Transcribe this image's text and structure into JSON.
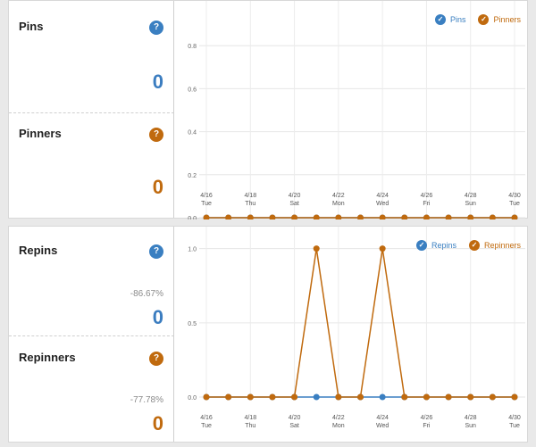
{
  "top_panel": {
    "metrics": [
      {
        "title": "Pins",
        "value": "0",
        "color": "#3b7dc0",
        "help_icon": "question-icon"
      },
      {
        "title": "Pinners",
        "value": "0",
        "color": "#c06a0e",
        "help_icon": "question-icon"
      }
    ],
    "legend": [
      {
        "label": "Pins",
        "color": "#3a7fc1",
        "icon": "check-icon"
      },
      {
        "label": "Pinners",
        "color": "#c06a0e",
        "icon": "check-icon"
      }
    ]
  },
  "bottom_panel": {
    "metrics": [
      {
        "title": "Repins",
        "value": "0",
        "change": "-86.67%",
        "color": "#3b7dc0",
        "help_icon": "question-icon"
      },
      {
        "title": "Repinners",
        "value": "0",
        "change": "-77.78%",
        "color": "#c06a0e",
        "help_icon": "question-icon"
      }
    ],
    "legend": [
      {
        "label": "Repins",
        "color": "#3a7fc1",
        "icon": "check-icon"
      },
      {
        "label": "Repinners",
        "color": "#c06a0e",
        "icon": "check-icon"
      }
    ]
  },
  "help_glyph": "?",
  "check_glyph": "✓",
  "chart_data": [
    {
      "type": "line",
      "x": [
        "4/16",
        "4/17",
        "4/18",
        "4/19",
        "4/20",
        "4/21",
        "4/22",
        "4/23",
        "4/24",
        "4/25",
        "4/26",
        "4/27",
        "4/28",
        "4/29",
        "4/30"
      ],
      "x_tick_labels": [
        {
          "date": "4/16",
          "day": "Tue"
        },
        {
          "date": "4/18",
          "day": "Thu"
        },
        {
          "date": "4/20",
          "day": "Sat"
        },
        {
          "date": "4/22",
          "day": "Mon"
        },
        {
          "date": "4/24",
          "day": "Wed"
        },
        {
          "date": "4/26",
          "day": "Fri"
        },
        {
          "date": "4/28",
          "day": "Sun"
        },
        {
          "date": "4/30",
          "day": "Tue"
        }
      ],
      "y_ticks": [
        "0.8",
        "0.6",
        "0.4",
        "0.2",
        "0.0"
      ],
      "ylim": [
        0,
        1
      ],
      "series": [
        {
          "name": "Pins",
          "color": "#3a7fc1",
          "values": [
            0,
            0,
            0,
            0,
            0,
            0,
            0,
            0,
            0,
            0,
            0,
            0,
            0,
            0,
            0
          ]
        },
        {
          "name": "Pinners",
          "color": "#c06a0e",
          "values": [
            0,
            0,
            0,
            0,
            0,
            0,
            0,
            0,
            0,
            0,
            0,
            0,
            0,
            0,
            0
          ]
        }
      ],
      "grid": true
    },
    {
      "type": "line",
      "x": [
        "4/16",
        "4/17",
        "4/18",
        "4/19",
        "4/20",
        "4/21",
        "4/22",
        "4/23",
        "4/24",
        "4/25",
        "4/26",
        "4/27",
        "4/28",
        "4/29",
        "4/30"
      ],
      "x_tick_labels": [
        {
          "date": "4/16",
          "day": "Tue"
        },
        {
          "date": "4/18",
          "day": "Thu"
        },
        {
          "date": "4/20",
          "day": "Sat"
        },
        {
          "date": "4/22",
          "day": "Mon"
        },
        {
          "date": "4/24",
          "day": "Wed"
        },
        {
          "date": "4/26",
          "day": "Fri"
        },
        {
          "date": "4/28",
          "day": "Sun"
        },
        {
          "date": "4/30",
          "day": "Tue"
        }
      ],
      "y_ticks": [
        "1.0",
        "0.5",
        "0.0"
      ],
      "ylim": [
        0,
        1.1
      ],
      "series": [
        {
          "name": "Repins",
          "color": "#3a7fc1",
          "values": [
            0,
            0,
            0,
            0,
            0,
            0,
            0,
            0,
            0,
            0,
            0,
            0,
            0,
            0,
            0
          ]
        },
        {
          "name": "Repinners",
          "color": "#c06a0e",
          "values": [
            0,
            0,
            0,
            0,
            0,
            1,
            0,
            0,
            1,
            0,
            0,
            0,
            0,
            0,
            0
          ]
        }
      ],
      "grid": true
    }
  ]
}
